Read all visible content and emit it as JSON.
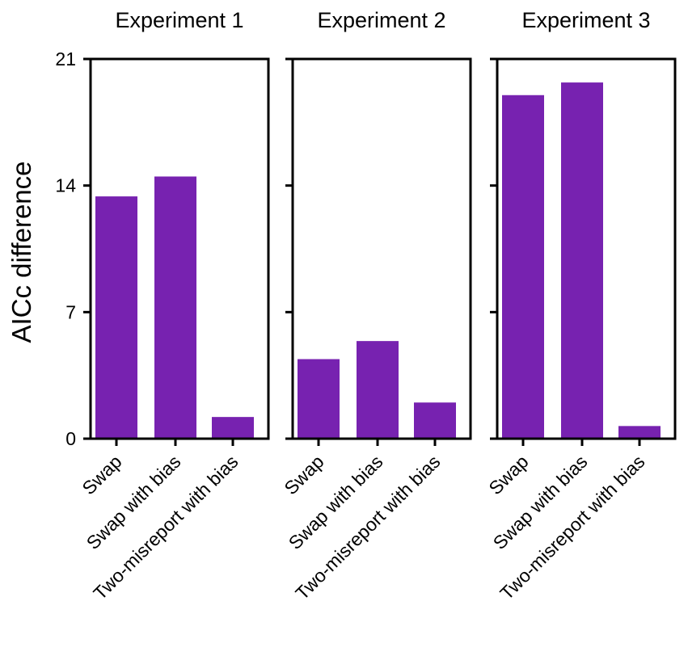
{
  "chart_data": [
    {
      "type": "bar",
      "title": "Experiment 1",
      "categories": [
        "Swap",
        "Swap with bias",
        "Two-misreport with bias"
      ],
      "values": [
        13.4,
        14.5,
        1.2
      ],
      "ylabel": "AICc  difference",
      "ylim": [
        0,
        21
      ],
      "yticks": [
        0,
        7,
        14,
        21
      ],
      "color": "#7722b0"
    },
    {
      "type": "bar",
      "title": "Experiment 2",
      "categories": [
        "Swap",
        "Swap with bias",
        "Two-misreport with bias"
      ],
      "values": [
        4.4,
        5.4,
        2.0
      ],
      "ylabel": "",
      "ylim": [
        0,
        21
      ],
      "yticks": [
        0,
        7,
        14,
        21
      ],
      "color": "#7722b0"
    },
    {
      "type": "bar",
      "title": "Experiment 3",
      "categories": [
        "Swap",
        "Swap with bias",
        "Two-misreport with bias"
      ],
      "values": [
        19.0,
        19.7,
        0.7
      ],
      "ylabel": "",
      "ylim": [
        0,
        21
      ],
      "yticks": [
        0,
        7,
        14,
        21
      ],
      "color": "#7722b0"
    }
  ]
}
